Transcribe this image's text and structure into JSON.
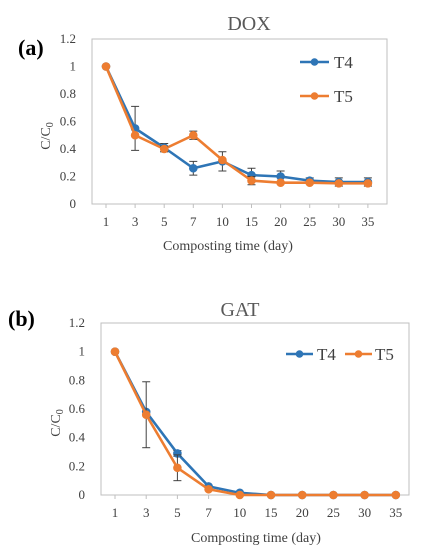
{
  "colors": {
    "T4": "#2E75B6",
    "T5": "#ED7D31",
    "axis": "#bfbfbf",
    "errorbar": "#404040"
  },
  "panels": [
    {
      "label": "(a)"
    },
    {
      "label": "(b)"
    }
  ],
  "chart_data": [
    {
      "type": "line",
      "title": "DOX",
      "xlabel": "Composting time (day)",
      "ylabel": "C/C0",
      "ylabel_main": "C/C",
      "ylabel_sub": "0",
      "categories": [
        "1",
        "3",
        "5",
        "7",
        "10",
        "15",
        "20",
        "25",
        "30",
        "35"
      ],
      "ylim": [
        0,
        1.2
      ],
      "yticks": [
        "0",
        "0.2",
        "0.4",
        "0.6",
        "0.8",
        "1",
        "1.2"
      ],
      "legend_position": "top-right",
      "grid": false,
      "series": [
        {
          "name": "T4",
          "values": [
            1.0,
            0.55,
            0.41,
            0.26,
            0.31,
            0.21,
            0.2,
            0.17,
            0.16,
            0.16
          ],
          "errors": [
            0.0,
            0.16,
            0.03,
            0.05,
            0.07,
            0.05,
            0.04,
            0.02,
            0.03,
            0.03
          ]
        },
        {
          "name": "T5",
          "values": [
            1.0,
            0.5,
            0.4,
            0.5,
            0.32,
            0.17,
            0.155,
            0.155,
            0.15,
            0.15
          ],
          "errors": [
            0.0,
            0.0,
            0.02,
            0.03,
            0.0,
            0.03,
            0.0,
            0.0,
            0.0,
            0.0
          ]
        }
      ]
    },
    {
      "type": "line",
      "title": "GAT",
      "xlabel": "Composting time (day)",
      "ylabel": "C/C0",
      "ylabel_main": "C/C",
      "ylabel_sub": "0",
      "categories": [
        "1",
        "3",
        "5",
        "7",
        "10",
        "15",
        "20",
        "25",
        "30",
        "35"
      ],
      "ylim": [
        0,
        1.2
      ],
      "yticks": [
        "0",
        "0.2",
        "0.4",
        "0.6",
        "0.8",
        "1",
        "1.2"
      ],
      "legend_position": "top-right",
      "grid": false,
      "series": [
        {
          "name": "T4",
          "values": [
            1.0,
            0.58,
            0.29,
            0.06,
            0.015,
            0.0,
            0.0,
            0.0,
            0.0,
            0.0
          ],
          "errors": [
            0.0,
            0.0,
            0.02,
            0.0,
            0.0,
            0.0,
            0.0,
            0.0,
            0.0,
            0.0
          ]
        },
        {
          "name": "T5",
          "values": [
            1.0,
            0.56,
            0.19,
            0.04,
            0.0,
            0.0,
            0.0,
            0.0,
            0.0,
            0.0
          ],
          "errors": [
            0.0,
            0.23,
            0.09,
            0.0,
            0.0,
            0.0,
            0.0,
            0.0,
            0.0,
            0.0
          ]
        }
      ]
    }
  ]
}
